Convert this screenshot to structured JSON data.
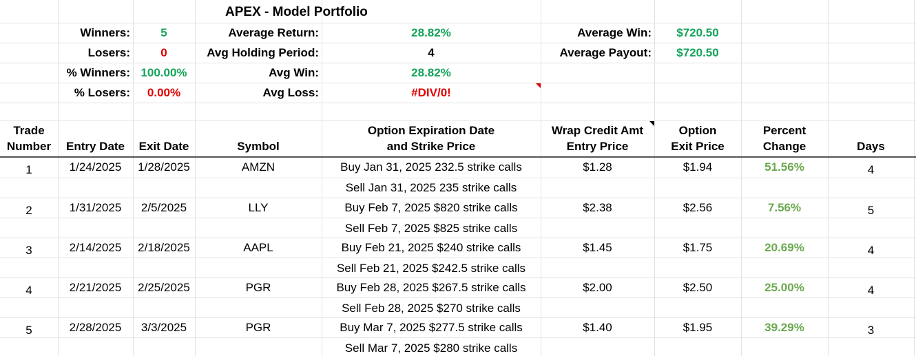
{
  "title": "APEX - Model Portfolio",
  "summary": {
    "winners_label": "Winners:",
    "winners_value": "5",
    "losers_label": "Losers:",
    "losers_value": "0",
    "pct_winners_label": "% Winners:",
    "pct_winners_value": "100.00%",
    "pct_losers_label": "% Losers:",
    "pct_losers_value": "0.00%",
    "avg_return_label": "Average Return:",
    "avg_return_value": "28.82%",
    "avg_holding_label": "Avg Holding Period:",
    "avg_holding_value": "4",
    "avg_win_label": "Avg Win:",
    "avg_win_value": "28.82%",
    "avg_loss_label": "Avg Loss:",
    "avg_loss_value": "#DIV/0!",
    "average_win_label": "Average Win:",
    "average_win_value": "$720.50",
    "average_payout_label": "Average Payout:",
    "average_payout_value": "$720.50"
  },
  "headers": {
    "trade_number_1": "Trade",
    "trade_number_2": "Number",
    "entry_date": "Entry Date",
    "exit_date": "Exit Date",
    "symbol": "Symbol",
    "option_1": "Option Expiration Date",
    "option_2": "and Strike Price",
    "wrap_1": "Wrap Credit Amt",
    "wrap_2": "Entry Price",
    "exit_1": "Option",
    "exit_2": "Exit Price",
    "pct_1": "Percent",
    "pct_2": "Change",
    "days": "Days"
  },
  "trades": [
    {
      "num": "1",
      "entry": "1/24/2025",
      "exit": "1/28/2025",
      "symbol": "AMZN",
      "buy": "Buy Jan 31, 2025 232.5 strike calls",
      "sell": "Sell Jan 31, 2025 235 strike calls",
      "entry_price": "$1.28",
      "exit_price": "$1.94",
      "pct": "51.56%",
      "days": "4"
    },
    {
      "num": "2",
      "entry": "1/31/2025",
      "exit": "2/5/2025",
      "symbol": "LLY",
      "buy": "Buy Feb 7, 2025 $820 strike calls",
      "sell": "Sell Feb 7, 2025 $825 strike calls",
      "entry_price": "$2.38",
      "exit_price": "$2.56",
      "pct": "7.56%",
      "days": "5"
    },
    {
      "num": "3",
      "entry": "2/14/2025",
      "exit": "2/18/2025",
      "symbol": "AAPL",
      "buy": "Buy Feb 21, 2025 $240 strike calls",
      "sell": "Sell Feb 21, 2025 $242.5 strike calls",
      "entry_price": "$1.45",
      "exit_price": "$1.75",
      "pct": "20.69%",
      "days": "4"
    },
    {
      "num": "4",
      "entry": "2/21/2025",
      "exit": "2/25/2025",
      "symbol": "PGR",
      "buy": "Buy Feb 28, 2025 $267.5 strike calls",
      "sell": "Sell Feb 28, 2025 $270 strike calls",
      "entry_price": "$2.00",
      "exit_price": "$2.50",
      "pct": "25.00%",
      "days": "4"
    },
    {
      "num": "5",
      "entry": "2/28/2025",
      "exit": "3/3/2025",
      "symbol": "PGR",
      "buy": "Buy Mar 7, 2025 $277.5 strike calls",
      "sell": "Sell Mar 7, 2025 $280 strike calls",
      "entry_price": "$1.40",
      "exit_price": "$1.95",
      "pct": "39.29%",
      "days": "3"
    }
  ],
  "colors": {
    "positive": "#14a35a",
    "negative": "#e00000",
    "pct_change": "#6aa84f"
  }
}
